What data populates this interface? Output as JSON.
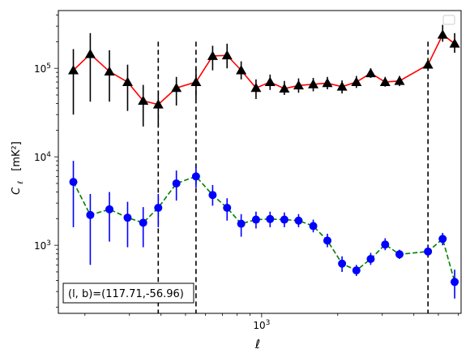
{
  "chart_data": {
    "type": "scatter",
    "xscale": "log",
    "yscale": "log",
    "xlim": [
      157,
      6150
    ],
    "ylim": [
      170,
      450000
    ],
    "xlabel": "ℓ",
    "ylabel_main": "C",
    "ylabel_sub": "ℓ",
    "ylabel_unit": "[mK²]",
    "xtick_labels": [
      {
        "value": 1000,
        "base": "10",
        "exp": "3"
      }
    ],
    "ytick_labels": [
      {
        "value": 1000,
        "base": "10",
        "exp": "3"
      },
      {
        "value": 10000,
        "base": "10",
        "exp": "4"
      },
      {
        "value": 100000,
        "base": "10",
        "exp": "5"
      }
    ],
    "vlines": [
      390,
      550,
      4550
    ],
    "vline_range": [
      170,
      200000
    ],
    "annotation": "(l, b)=(117.71,-56.96)",
    "legend": {
      "placement": "upper right",
      "entries": []
    },
    "series": [
      {
        "marker": "triangle",
        "line_style": "solid",
        "line_color": "#ff0000",
        "marker_color": "#000000",
        "points": [
          {
            "x": 180,
            "y": 95000,
            "lo": 30000,
            "hi": 165000
          },
          {
            "x": 210,
            "y": 145000,
            "lo": 42000,
            "hi": 250000
          },
          {
            "x": 250,
            "y": 92000,
            "lo": 42000,
            "hi": 160000
          },
          {
            "x": 295,
            "y": 70000,
            "lo": 33000,
            "hi": 110000
          },
          {
            "x": 340,
            "y": 43000,
            "lo": 22000,
            "hi": 65000
          },
          {
            "x": 390,
            "y": 39000,
            "lo": 22000,
            "hi": 55000
          },
          {
            "x": 460,
            "y": 60000,
            "lo": 38000,
            "hi": 80000
          },
          {
            "x": 550,
            "y": 70000,
            "lo": 45000,
            "hi": 100000
          },
          {
            "x": 640,
            "y": 138000,
            "lo": 95000,
            "hi": 180000
          },
          {
            "x": 730,
            "y": 140000,
            "lo": 100000,
            "hi": 190000
          },
          {
            "x": 830,
            "y": 95000,
            "lo": 75000,
            "hi": 120000
          },
          {
            "x": 950,
            "y": 60000,
            "lo": 45000,
            "hi": 75000
          },
          {
            "x": 1080,
            "y": 70000,
            "lo": 57000,
            "hi": 85000
          },
          {
            "x": 1230,
            "y": 59000,
            "lo": 50000,
            "hi": 72000
          },
          {
            "x": 1400,
            "y": 64000,
            "lo": 53000,
            "hi": 77000
          },
          {
            "x": 1600,
            "y": 66000,
            "lo": 55000,
            "hi": 78000
          },
          {
            "x": 1820,
            "y": 68000,
            "lo": 58000,
            "hi": 80000
          },
          {
            "x": 2080,
            "y": 62000,
            "lo": 52000,
            "hi": 73000
          },
          {
            "x": 2370,
            "y": 70000,
            "lo": 60000,
            "hi": 82000
          },
          {
            "x": 2700,
            "y": 88000,
            "lo": 78000,
            "hi": 100000
          },
          {
            "x": 3080,
            "y": 70000,
            "lo": 62000,
            "hi": 80000
          },
          {
            "x": 3510,
            "y": 72000,
            "lo": 63000,
            "hi": 82000
          },
          {
            "x": 4550,
            "y": 110000,
            "lo": 95000,
            "hi": 125000
          },
          {
            "x": 5200,
            "y": 240000,
            "lo": 200000,
            "hi": 310000
          },
          {
            "x": 5800,
            "y": 190000,
            "lo": 150000,
            "hi": 250000
          }
        ]
      },
      {
        "marker": "circle",
        "line_style": "dashed",
        "line_color": "#008000",
        "marker_color": "#0000ff",
        "points": [
          {
            "x": 180,
            "y": 5200,
            "lo": 1600,
            "hi": 9000
          },
          {
            "x": 210,
            "y": 2200,
            "lo": 600,
            "hi": 3800
          },
          {
            "x": 250,
            "y": 2550,
            "lo": 1100,
            "hi": 4000
          },
          {
            "x": 295,
            "y": 2050,
            "lo": 950,
            "hi": 3100
          },
          {
            "x": 340,
            "y": 1800,
            "lo": 950,
            "hi": 2700
          },
          {
            "x": 390,
            "y": 2650,
            "lo": 1600,
            "hi": 3800
          },
          {
            "x": 460,
            "y": 5000,
            "lo": 3200,
            "hi": 7000
          },
          {
            "x": 550,
            "y": 6000,
            "lo": 4500,
            "hi": 7700
          },
          {
            "x": 640,
            "y": 3700,
            "lo": 2800,
            "hi": 4800
          },
          {
            "x": 730,
            "y": 2650,
            "lo": 1900,
            "hi": 3400
          },
          {
            "x": 830,
            "y": 1750,
            "lo": 1250,
            "hi": 2250
          },
          {
            "x": 950,
            "y": 1950,
            "lo": 1550,
            "hi": 2400
          },
          {
            "x": 1080,
            "y": 1980,
            "lo": 1600,
            "hi": 2400
          },
          {
            "x": 1230,
            "y": 1950,
            "lo": 1600,
            "hi": 2350
          },
          {
            "x": 1400,
            "y": 1900,
            "lo": 1600,
            "hi": 2250
          },
          {
            "x": 1600,
            "y": 1650,
            "lo": 1400,
            "hi": 1950
          },
          {
            "x": 1820,
            "y": 1130,
            "lo": 950,
            "hi": 1350
          },
          {
            "x": 2080,
            "y": 620,
            "lo": 500,
            "hi": 750
          },
          {
            "x": 2370,
            "y": 520,
            "lo": 450,
            "hi": 600
          },
          {
            "x": 2700,
            "y": 700,
            "lo": 600,
            "hi": 820
          },
          {
            "x": 3080,
            "y": 1020,
            "lo": 880,
            "hi": 1200
          },
          {
            "x": 3510,
            "y": 790,
            "lo": 700,
            "hi": 890
          },
          {
            "x": 4550,
            "y": 850,
            "lo": 750,
            "hi": 970
          },
          {
            "x": 5200,
            "y": 1180,
            "lo": 1000,
            "hi": 1380
          },
          {
            "x": 5800,
            "y": 385,
            "lo": 250,
            "hi": 530
          }
        ]
      }
    ]
  }
}
